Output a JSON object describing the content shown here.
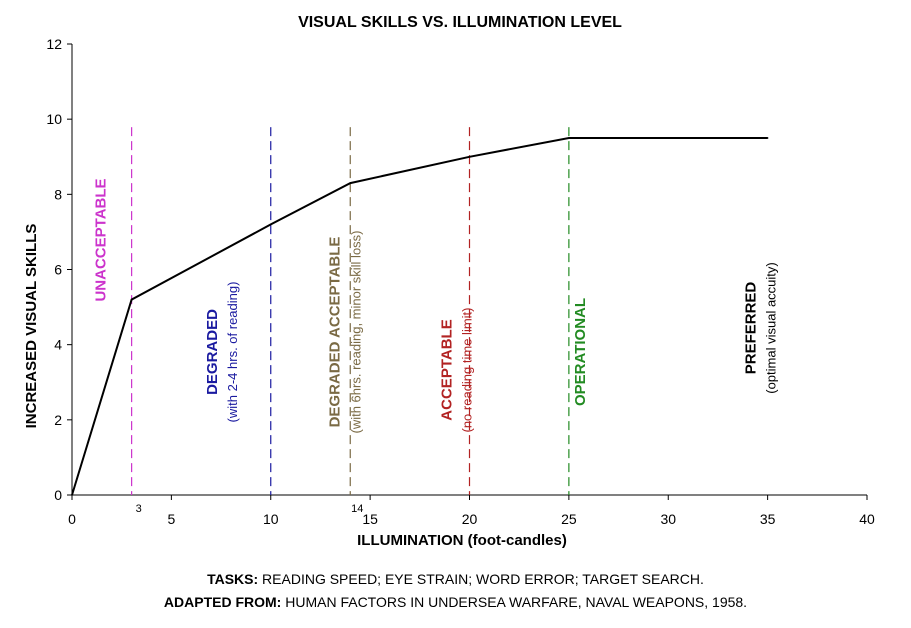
{
  "chart_data": {
    "type": "line",
    "title": "VISUAL SKILLS VS. ILLUMINATION LEVEL",
    "xlabel": "ILLUMINATION (foot-candles)",
    "ylabel": "INCREASED VISUAL SKILLS",
    "xlim": [
      0,
      40
    ],
    "ylim": [
      0,
      12
    ],
    "xticks": [
      0,
      5,
      10,
      15,
      20,
      25,
      30,
      35,
      40
    ],
    "yticks": [
      0,
      2,
      4,
      6,
      8,
      10,
      12
    ],
    "extra_x_labels": [
      {
        "x": 3,
        "label": "3"
      },
      {
        "x": 14,
        "label": "14"
      }
    ],
    "grid": false,
    "series": [
      {
        "x": [
          0,
          3,
          10,
          14,
          20,
          25,
          35
        ],
        "y": [
          0,
          5.2,
          7.2,
          8.3,
          9.0,
          9.5,
          9.5
        ],
        "color": "#000000"
      }
    ],
    "zones": [
      {
        "x": 3,
        "color": "#cc33cc",
        "label": "UNACCEPTABLE",
        "sublabel": ""
      },
      {
        "x": 10,
        "color": "#1a1aa0",
        "label": "DEGRADED",
        "sublabel": "(with 2-4 hrs. of reading)"
      },
      {
        "x": 14,
        "color": "#7a6a44",
        "label": "DEGRADED ACCEPTABLE",
        "sublabel": "(with 6hrs. reading, minor skill loss)"
      },
      {
        "x": 20,
        "color": "#b22222",
        "label": "ACCEPTABLE",
        "sublabel": "(no reading time limit)"
      },
      {
        "x": 25,
        "color": "#228b22",
        "label": "OPERATIONAL",
        "sublabel": ""
      },
      {
        "x": 35,
        "color": "#000000",
        "label": "PREFERRED",
        "sublabel": "(optimal visual accuity)"
      }
    ]
  },
  "footer": {
    "tasks_label": "TASKS:",
    "tasks_text": " READING SPEED; EYE STRAIN; WORD ERROR; TARGET SEARCH.",
    "source_label": "ADAPTED FROM:",
    "source_text": " HUMAN FACTORS IN UNDERSEA WARFARE, NAVAL WEAPONS, 1958."
  }
}
